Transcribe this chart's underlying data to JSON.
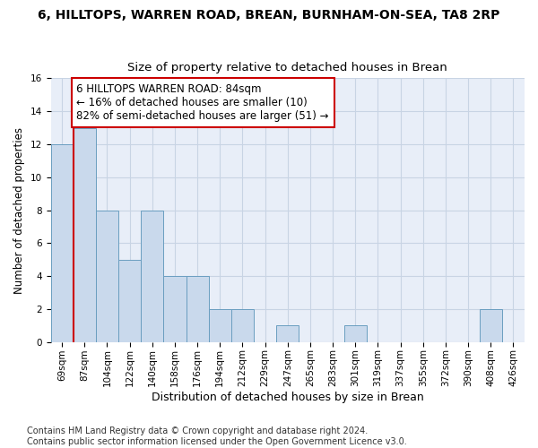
{
  "title": "6, HILLTOPS, WARREN ROAD, BREAN, BURNHAM-ON-SEA, TA8 2RP",
  "subtitle": "Size of property relative to detached houses in Brean",
  "xlabel": "Distribution of detached houses by size in Brean",
  "ylabel": "Number of detached properties",
  "categories": [
    "69sqm",
    "87sqm",
    "104sqm",
    "122sqm",
    "140sqm",
    "158sqm",
    "176sqm",
    "194sqm",
    "212sqm",
    "229sqm",
    "247sqm",
    "265sqm",
    "283sqm",
    "301sqm",
    "319sqm",
    "337sqm",
    "355sqm",
    "372sqm",
    "390sqm",
    "408sqm",
    "426sqm"
  ],
  "values": [
    12,
    13,
    8,
    5,
    8,
    4,
    4,
    2,
    2,
    0,
    1,
    0,
    0,
    1,
    0,
    0,
    0,
    0,
    0,
    2,
    0
  ],
  "bar_color": "#c9d9ec",
  "bar_edge_color": "#6a9ec0",
  "vline_x": 0.5,
  "vline_color": "#cc0000",
  "annotation_text": "6 HILLTOPS WARREN ROAD: 84sqm\n← 16% of detached houses are smaller (10)\n82% of semi-detached houses are larger (51) →",
  "annotation_box_color": "#ffffff",
  "annotation_box_edge": "#cc0000",
  "ylim": [
    0,
    16
  ],
  "yticks": [
    0,
    2,
    4,
    6,
    8,
    10,
    12,
    14,
    16
  ],
  "grid_color": "#c8d4e4",
  "bg_color": "#e8eef8",
  "footer": "Contains HM Land Registry data © Crown copyright and database right 2024.\nContains public sector information licensed under the Open Government Licence v3.0.",
  "title_fontsize": 10,
  "subtitle_fontsize": 9.5,
  "xlabel_fontsize": 9,
  "ylabel_fontsize": 8.5,
  "tick_fontsize": 7.5,
  "annotation_fontsize": 8.5,
  "footer_fontsize": 7
}
